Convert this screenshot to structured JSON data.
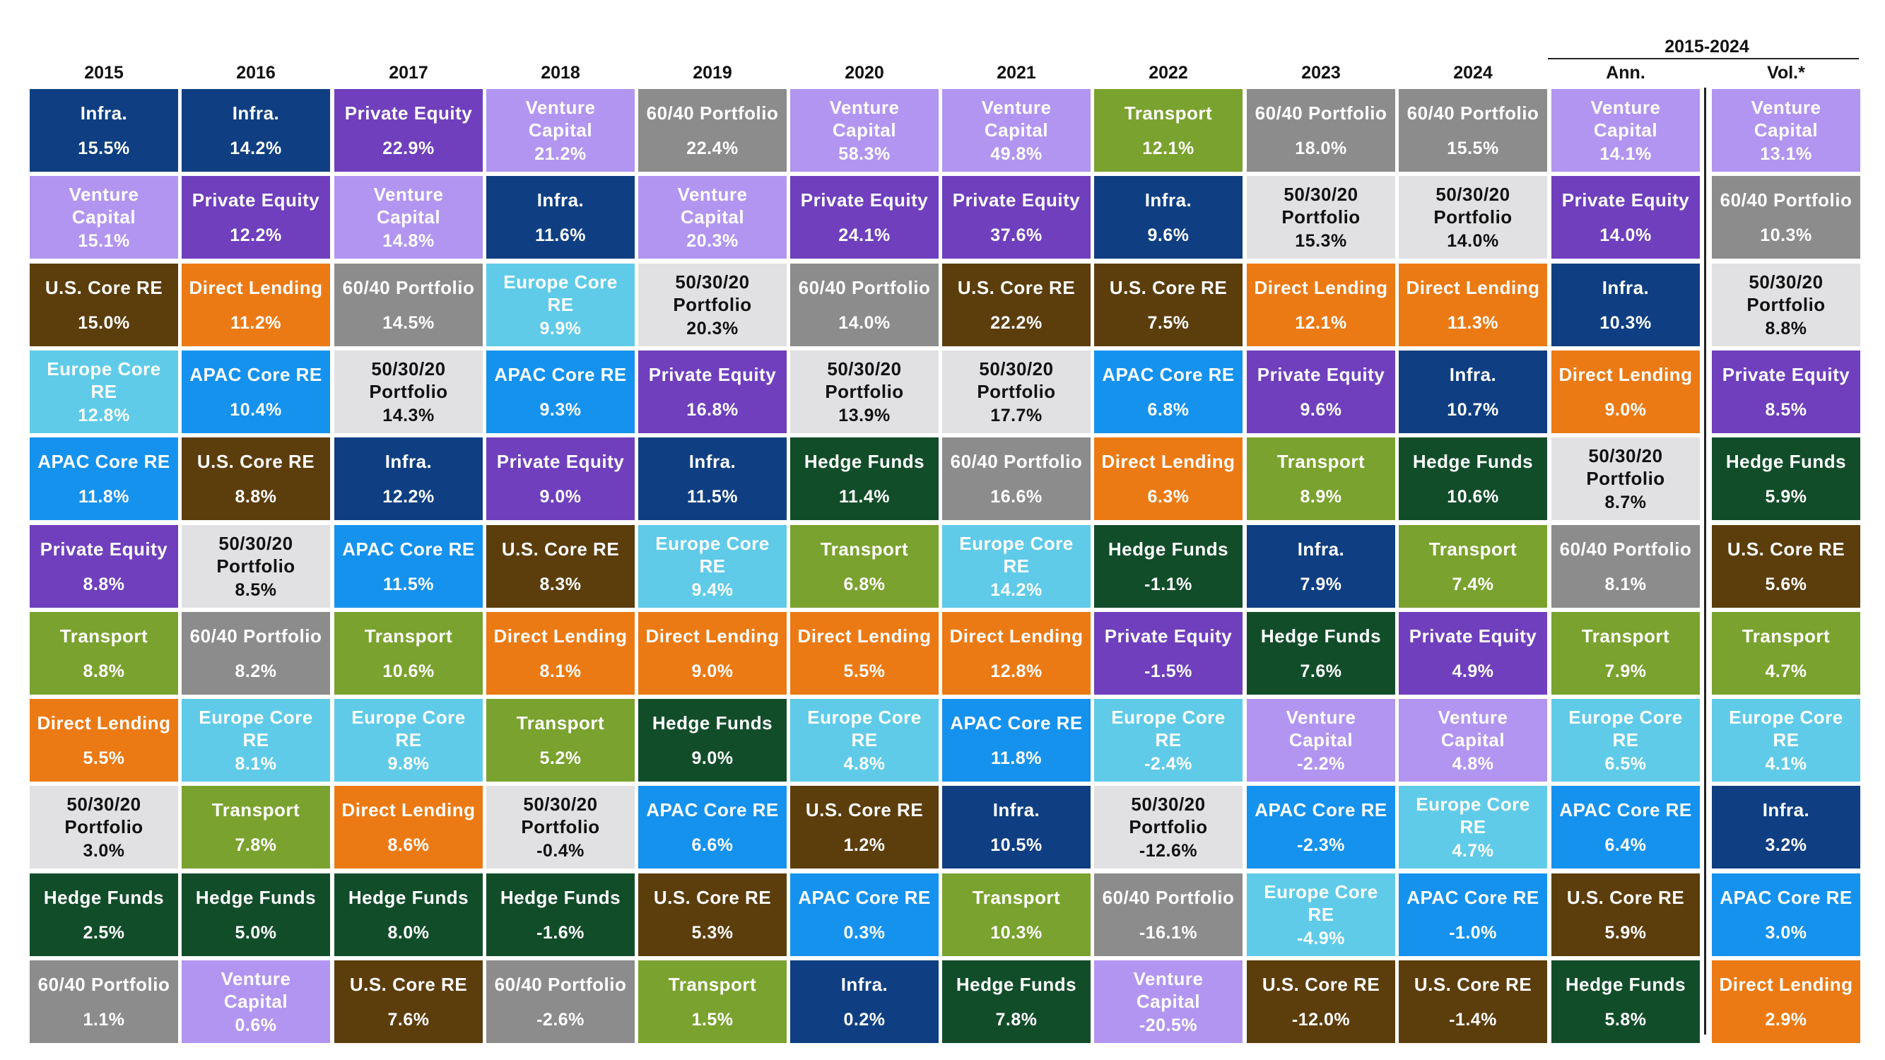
{
  "chart_data": {
    "type": "table",
    "group_header": "2015-2024",
    "columns": [
      "2015",
      "2016",
      "2017",
      "2018",
      "2019",
      "2020",
      "2021",
      "2022",
      "2023",
      "2024",
      "Ann.",
      "Vol.*"
    ],
    "asset_colors": {
      "Infra.": {
        "bg": "#0f3f82",
        "fg": "#ffffff"
      },
      "Venture Capital": {
        "bg": "#b295f0",
        "fg": "#ffffff"
      },
      "Private Equity": {
        "bg": "#6f3fbd",
        "fg": "#ffffff"
      },
      "60/40 Portfolio": {
        "bg": "#8c8c8c",
        "fg": "#ffffff"
      },
      "50/30/20 Portfolio": {
        "bg": "#e1e1e3",
        "fg": "#111111"
      },
      "U.S. Core RE": {
        "bg": "#5c3d0c",
        "fg": "#ffffff"
      },
      "Direct Lending": {
        "bg": "#ec7a14",
        "fg": "#ffffff"
      },
      "Europe Core RE": {
        "bg": "#5fcbe8",
        "fg": "#ffffff"
      },
      "APAC Core RE": {
        "bg": "#1592ee",
        "fg": "#ffffff"
      },
      "Hedge Funds": {
        "bg": "#124d2a",
        "fg": "#ffffff"
      },
      "Transport": {
        "bg": "#7aa22e",
        "fg": "#ffffff"
      }
    },
    "cells": [
      [
        {
          "asset": "Infra.",
          "label": "Infra.",
          "value": "15.5%"
        },
        {
          "asset": "Venture Capital",
          "label": "Venture\nCapital",
          "value": "15.1%"
        },
        {
          "asset": "U.S. Core RE",
          "label": "U.S. Core RE",
          "value": "15.0%"
        },
        {
          "asset": "Europe Core RE",
          "label": "Europe Core\nRE",
          "value": "12.8%"
        },
        {
          "asset": "APAC Core RE",
          "label": "APAC Core RE",
          "value": "11.8%"
        },
        {
          "asset": "Private Equity",
          "label": "Private Equity",
          "value": "8.8%"
        },
        {
          "asset": "Transport",
          "label": "Transport",
          "value": "8.8%"
        },
        {
          "asset": "Direct Lending",
          "label": "Direct Lending",
          "value": "5.5%"
        },
        {
          "asset": "50/30/20 Portfolio",
          "label": "50/30/20\nPortfolio",
          "value": "3.0%"
        },
        {
          "asset": "Hedge Funds",
          "label": "Hedge Funds",
          "value": "2.5%"
        },
        {
          "asset": "60/40 Portfolio",
          "label": "60/40 Portfolio",
          "value": "1.1%"
        }
      ],
      [
        {
          "asset": "Infra.",
          "label": "Infra.",
          "value": "14.2%"
        },
        {
          "asset": "Private Equity",
          "label": "Private Equity",
          "value": "12.2%"
        },
        {
          "asset": "Direct Lending",
          "label": "Direct Lending",
          "value": "11.2%"
        },
        {
          "asset": "APAC Core RE",
          "label": "APAC Core RE",
          "value": "10.4%"
        },
        {
          "asset": "U.S. Core RE",
          "label": "U.S. Core RE",
          "value": "8.8%"
        },
        {
          "asset": "50/30/20 Portfolio",
          "label": "50/30/20\nPortfolio",
          "value": "8.5%"
        },
        {
          "asset": "60/40 Portfolio",
          "label": "60/40 Portfolio",
          "value": "8.2%"
        },
        {
          "asset": "Europe Core RE",
          "label": "Europe Core\nRE",
          "value": "8.1%"
        },
        {
          "asset": "Transport",
          "label": "Transport",
          "value": "7.8%"
        },
        {
          "asset": "Hedge Funds",
          "label": "Hedge Funds",
          "value": "5.0%"
        },
        {
          "asset": "Venture Capital",
          "label": "Venture\nCapital",
          "value": "0.6%"
        }
      ],
      [
        {
          "asset": "Private Equity",
          "label": "Private Equity",
          "value": "22.9%"
        },
        {
          "asset": "Venture Capital",
          "label": "Venture\nCapital",
          "value": "14.8%"
        },
        {
          "asset": "60/40 Portfolio",
          "label": "60/40 Portfolio",
          "value": "14.5%"
        },
        {
          "asset": "50/30/20 Portfolio",
          "label": "50/30/20\nPortfolio",
          "value": "14.3%"
        },
        {
          "asset": "Infra.",
          "label": "Infra.",
          "value": "12.2%"
        },
        {
          "asset": "APAC Core RE",
          "label": "APAC Core RE",
          "value": "11.5%"
        },
        {
          "asset": "Transport",
          "label": "Transport",
          "value": "10.6%"
        },
        {
          "asset": "Europe Core RE",
          "label": "Europe Core\nRE",
          "value": "9.8%"
        },
        {
          "asset": "Direct Lending",
          "label": "Direct Lending",
          "value": "8.6%"
        },
        {
          "asset": "Hedge Funds",
          "label": "Hedge Funds",
          "value": "8.0%"
        },
        {
          "asset": "U.S. Core RE",
          "label": "U.S. Core RE",
          "value": "7.6%"
        }
      ],
      [
        {
          "asset": "Venture Capital",
          "label": "Venture\nCapital",
          "value": "21.2%"
        },
        {
          "asset": "Infra.",
          "label": "Infra.",
          "value": "11.6%"
        },
        {
          "asset": "Europe Core RE",
          "label": "Europe Core\nRE",
          "value": "9.9%"
        },
        {
          "asset": "APAC Core RE",
          "label": "APAC Core RE",
          "value": "9.3%"
        },
        {
          "asset": "Private Equity",
          "label": "Private Equity",
          "value": "9.0%"
        },
        {
          "asset": "U.S. Core RE",
          "label": "U.S. Core RE",
          "value": "8.3%"
        },
        {
          "asset": "Direct Lending",
          "label": "Direct Lending",
          "value": "8.1%"
        },
        {
          "asset": "Transport",
          "label": "Transport",
          "value": "5.2%"
        },
        {
          "asset": "50/30/20 Portfolio",
          "label": "50/30/20\nPortfolio",
          "value": "-0.4%"
        },
        {
          "asset": "Hedge Funds",
          "label": "Hedge Funds",
          "value": "-1.6%"
        },
        {
          "asset": "60/40 Portfolio",
          "label": "60/40 Portfolio",
          "value": "-2.6%"
        }
      ],
      [
        {
          "asset": "60/40 Portfolio",
          "label": "60/40 Portfolio",
          "value": "22.4%"
        },
        {
          "asset": "Venture Capital",
          "label": "Venture\nCapital",
          "value": "20.3%"
        },
        {
          "asset": "50/30/20 Portfolio",
          "label": "50/30/20\nPortfolio",
          "value": "20.3%"
        },
        {
          "asset": "Private Equity",
          "label": "Private Equity",
          "value": "16.8%"
        },
        {
          "asset": "Infra.",
          "label": "Infra.",
          "value": "11.5%"
        },
        {
          "asset": "Europe Core RE",
          "label": "Europe Core\nRE",
          "value": "9.4%"
        },
        {
          "asset": "Direct Lending",
          "label": "Direct Lending",
          "value": "9.0%"
        },
        {
          "asset": "Hedge Funds",
          "label": "Hedge Funds",
          "value": "9.0%"
        },
        {
          "asset": "APAC Core RE",
          "label": "APAC Core RE",
          "value": "6.6%"
        },
        {
          "asset": "U.S. Core RE",
          "label": "U.S. Core RE",
          "value": "5.3%"
        },
        {
          "asset": "Transport",
          "label": "Transport",
          "value": "1.5%"
        }
      ],
      [
        {
          "asset": "Venture Capital",
          "label": "Venture\nCapital",
          "value": "58.3%"
        },
        {
          "asset": "Private Equity",
          "label": "Private Equity",
          "value": "24.1%"
        },
        {
          "asset": "60/40 Portfolio",
          "label": "60/40 Portfolio",
          "value": "14.0%"
        },
        {
          "asset": "50/30/20 Portfolio",
          "label": "50/30/20\nPortfolio",
          "value": "13.9%"
        },
        {
          "asset": "Hedge Funds",
          "label": "Hedge Funds",
          "value": "11.4%"
        },
        {
          "asset": "Transport",
          "label": "Transport",
          "value": "6.8%"
        },
        {
          "asset": "Direct Lending",
          "label": "Direct Lending",
          "value": "5.5%"
        },
        {
          "asset": "Europe Core RE",
          "label": "Europe Core\nRE",
          "value": "4.8%"
        },
        {
          "asset": "U.S. Core RE",
          "label": "U.S. Core RE",
          "value": "1.2%"
        },
        {
          "asset": "APAC Core RE",
          "label": "APAC Core RE",
          "value": "0.3%"
        },
        {
          "asset": "Infra.",
          "label": "Infra.",
          "value": "0.2%"
        }
      ],
      [
        {
          "asset": "Venture Capital",
          "label": "Venture\nCapital",
          "value": "49.8%"
        },
        {
          "asset": "Private Equity",
          "label": "Private Equity",
          "value": "37.6%"
        },
        {
          "asset": "U.S. Core RE",
          "label": "U.S. Core RE",
          "value": "22.2%"
        },
        {
          "asset": "50/30/20 Portfolio",
          "label": "50/30/20\nPortfolio",
          "value": "17.7%"
        },
        {
          "asset": "60/40 Portfolio",
          "label": "60/40 Portfolio",
          "value": "16.6%"
        },
        {
          "asset": "Europe Core RE",
          "label": "Europe Core\nRE",
          "value": "14.2%"
        },
        {
          "asset": "Direct Lending",
          "label": "Direct Lending",
          "value": "12.8%"
        },
        {
          "asset": "APAC Core RE",
          "label": "APAC Core RE",
          "value": "11.8%"
        },
        {
          "asset": "Infra.",
          "label": "Infra.",
          "value": "10.5%"
        },
        {
          "asset": "Transport",
          "label": "Transport",
          "value": "10.3%"
        },
        {
          "asset": "Hedge Funds",
          "label": "Hedge Funds",
          "value": "7.8%"
        }
      ],
      [
        {
          "asset": "Transport",
          "label": "Transport",
          "value": "12.1%"
        },
        {
          "asset": "Infra.",
          "label": "Infra.",
          "value": "9.6%"
        },
        {
          "asset": "U.S. Core RE",
          "label": "U.S. Core RE",
          "value": "7.5%"
        },
        {
          "asset": "APAC Core RE",
          "label": "APAC Core RE",
          "value": "6.8%"
        },
        {
          "asset": "Direct Lending",
          "label": "Direct Lending",
          "value": "6.3%"
        },
        {
          "asset": "Hedge Funds",
          "label": "Hedge Funds",
          "value": "-1.1%"
        },
        {
          "asset": "Private Equity",
          "label": "Private Equity",
          "value": "-1.5%"
        },
        {
          "asset": "Europe Core RE",
          "label": "Europe Core\nRE",
          "value": "-2.4%"
        },
        {
          "asset": "50/30/20 Portfolio",
          "label": "50/30/20\nPortfolio",
          "value": "-12.6%"
        },
        {
          "asset": "60/40 Portfolio",
          "label": "60/40 Portfolio",
          "value": "-16.1%"
        },
        {
          "asset": "Venture Capital",
          "label": "Venture\nCapital",
          "value": "-20.5%"
        }
      ],
      [
        {
          "asset": "60/40 Portfolio",
          "label": "60/40 Portfolio",
          "value": "18.0%"
        },
        {
          "asset": "50/30/20 Portfolio",
          "label": "50/30/20\nPortfolio",
          "value": "15.3%"
        },
        {
          "asset": "Direct Lending",
          "label": "Direct Lending",
          "value": "12.1%"
        },
        {
          "asset": "Private Equity",
          "label": "Private Equity",
          "value": "9.6%"
        },
        {
          "asset": "Transport",
          "label": "Transport",
          "value": "8.9%"
        },
        {
          "asset": "Infra.",
          "label": "Infra.",
          "value": "7.9%"
        },
        {
          "asset": "Hedge Funds",
          "label": "Hedge Funds",
          "value": "7.6%"
        },
        {
          "asset": "Venture Capital",
          "label": "Venture\nCapital",
          "value": "-2.2%"
        },
        {
          "asset": "APAC Core RE",
          "label": "APAC Core RE",
          "value": "-2.3%"
        },
        {
          "asset": "Europe Core RE",
          "label": "Europe Core\nRE",
          "value": "-4.9%"
        },
        {
          "asset": "U.S. Core RE",
          "label": "U.S. Core RE",
          "value": "-12.0%"
        }
      ],
      [
        {
          "asset": "60/40 Portfolio",
          "label": "60/40 Portfolio",
          "value": "15.5%"
        },
        {
          "asset": "50/30/20 Portfolio",
          "label": "50/30/20\nPortfolio",
          "value": "14.0%"
        },
        {
          "asset": "Direct Lending",
          "label": "Direct Lending",
          "value": "11.3%"
        },
        {
          "asset": "Infra.",
          "label": "Infra.",
          "value": "10.7%"
        },
        {
          "asset": "Hedge Funds",
          "label": "Hedge Funds",
          "value": "10.6%"
        },
        {
          "asset": "Transport",
          "label": "Transport",
          "value": "7.4%"
        },
        {
          "asset": "Private Equity",
          "label": "Private Equity",
          "value": "4.9%"
        },
        {
          "asset": "Venture Capital",
          "label": "Venture\nCapital",
          "value": "4.8%"
        },
        {
          "asset": "Europe Core RE",
          "label": "Europe Core\nRE",
          "value": "4.7%"
        },
        {
          "asset": "APAC Core RE",
          "label": "APAC Core RE",
          "value": "-1.0%"
        },
        {
          "asset": "U.S. Core RE",
          "label": "U.S. Core RE",
          "value": "-1.4%"
        }
      ],
      [
        {
          "asset": "Venture Capital",
          "label": "Venture\nCapital",
          "value": "14.1%"
        },
        {
          "asset": "Private Equity",
          "label": "Private Equity",
          "value": "14.0%"
        },
        {
          "asset": "Infra.",
          "label": "Infra.",
          "value": "10.3%"
        },
        {
          "asset": "Direct Lending",
          "label": "Direct Lending",
          "value": "9.0%"
        },
        {
          "asset": "50/30/20 Portfolio",
          "label": "50/30/20\nPortfolio",
          "value": "8.7%"
        },
        {
          "asset": "60/40 Portfolio",
          "label": "60/40 Portfolio",
          "value": "8.1%"
        },
        {
          "asset": "Transport",
          "label": "Transport",
          "value": "7.9%"
        },
        {
          "asset": "Europe Core RE",
          "label": "Europe Core\nRE",
          "value": "6.5%"
        },
        {
          "asset": "APAC Core RE",
          "label": "APAC Core RE",
          "value": "6.4%"
        },
        {
          "asset": "U.S. Core RE",
          "label": "U.S. Core RE",
          "value": "5.9%"
        },
        {
          "asset": "Hedge Funds",
          "label": "Hedge Funds",
          "value": "5.8%"
        }
      ],
      [
        {
          "asset": "Venture Capital",
          "label": "Venture\nCapital",
          "value": "13.1%"
        },
        {
          "asset": "60/40 Portfolio",
          "label": "60/40 Portfolio",
          "value": "10.3%"
        },
        {
          "asset": "50/30/20 Portfolio",
          "label": "50/30/20\nPortfolio",
          "value": "8.8%"
        },
        {
          "asset": "Private Equity",
          "label": "Private Equity",
          "value": "8.5%"
        },
        {
          "asset": "Hedge Funds",
          "label": "Hedge Funds",
          "value": "5.9%"
        },
        {
          "asset": "U.S. Core RE",
          "label": "U.S. Core RE",
          "value": "5.6%"
        },
        {
          "asset": "Transport",
          "label": "Transport",
          "value": "4.7%"
        },
        {
          "asset": "Europe Core RE",
          "label": "Europe Core\nRE",
          "value": "4.1%"
        },
        {
          "asset": "Infra.",
          "label": "Infra.",
          "value": "3.2%"
        },
        {
          "asset": "APAC Core RE",
          "label": "APAC Core RE",
          "value": "3.0%"
        },
        {
          "asset": "Direct Lending",
          "label": "Direct Lending",
          "value": "2.9%"
        }
      ]
    ]
  }
}
